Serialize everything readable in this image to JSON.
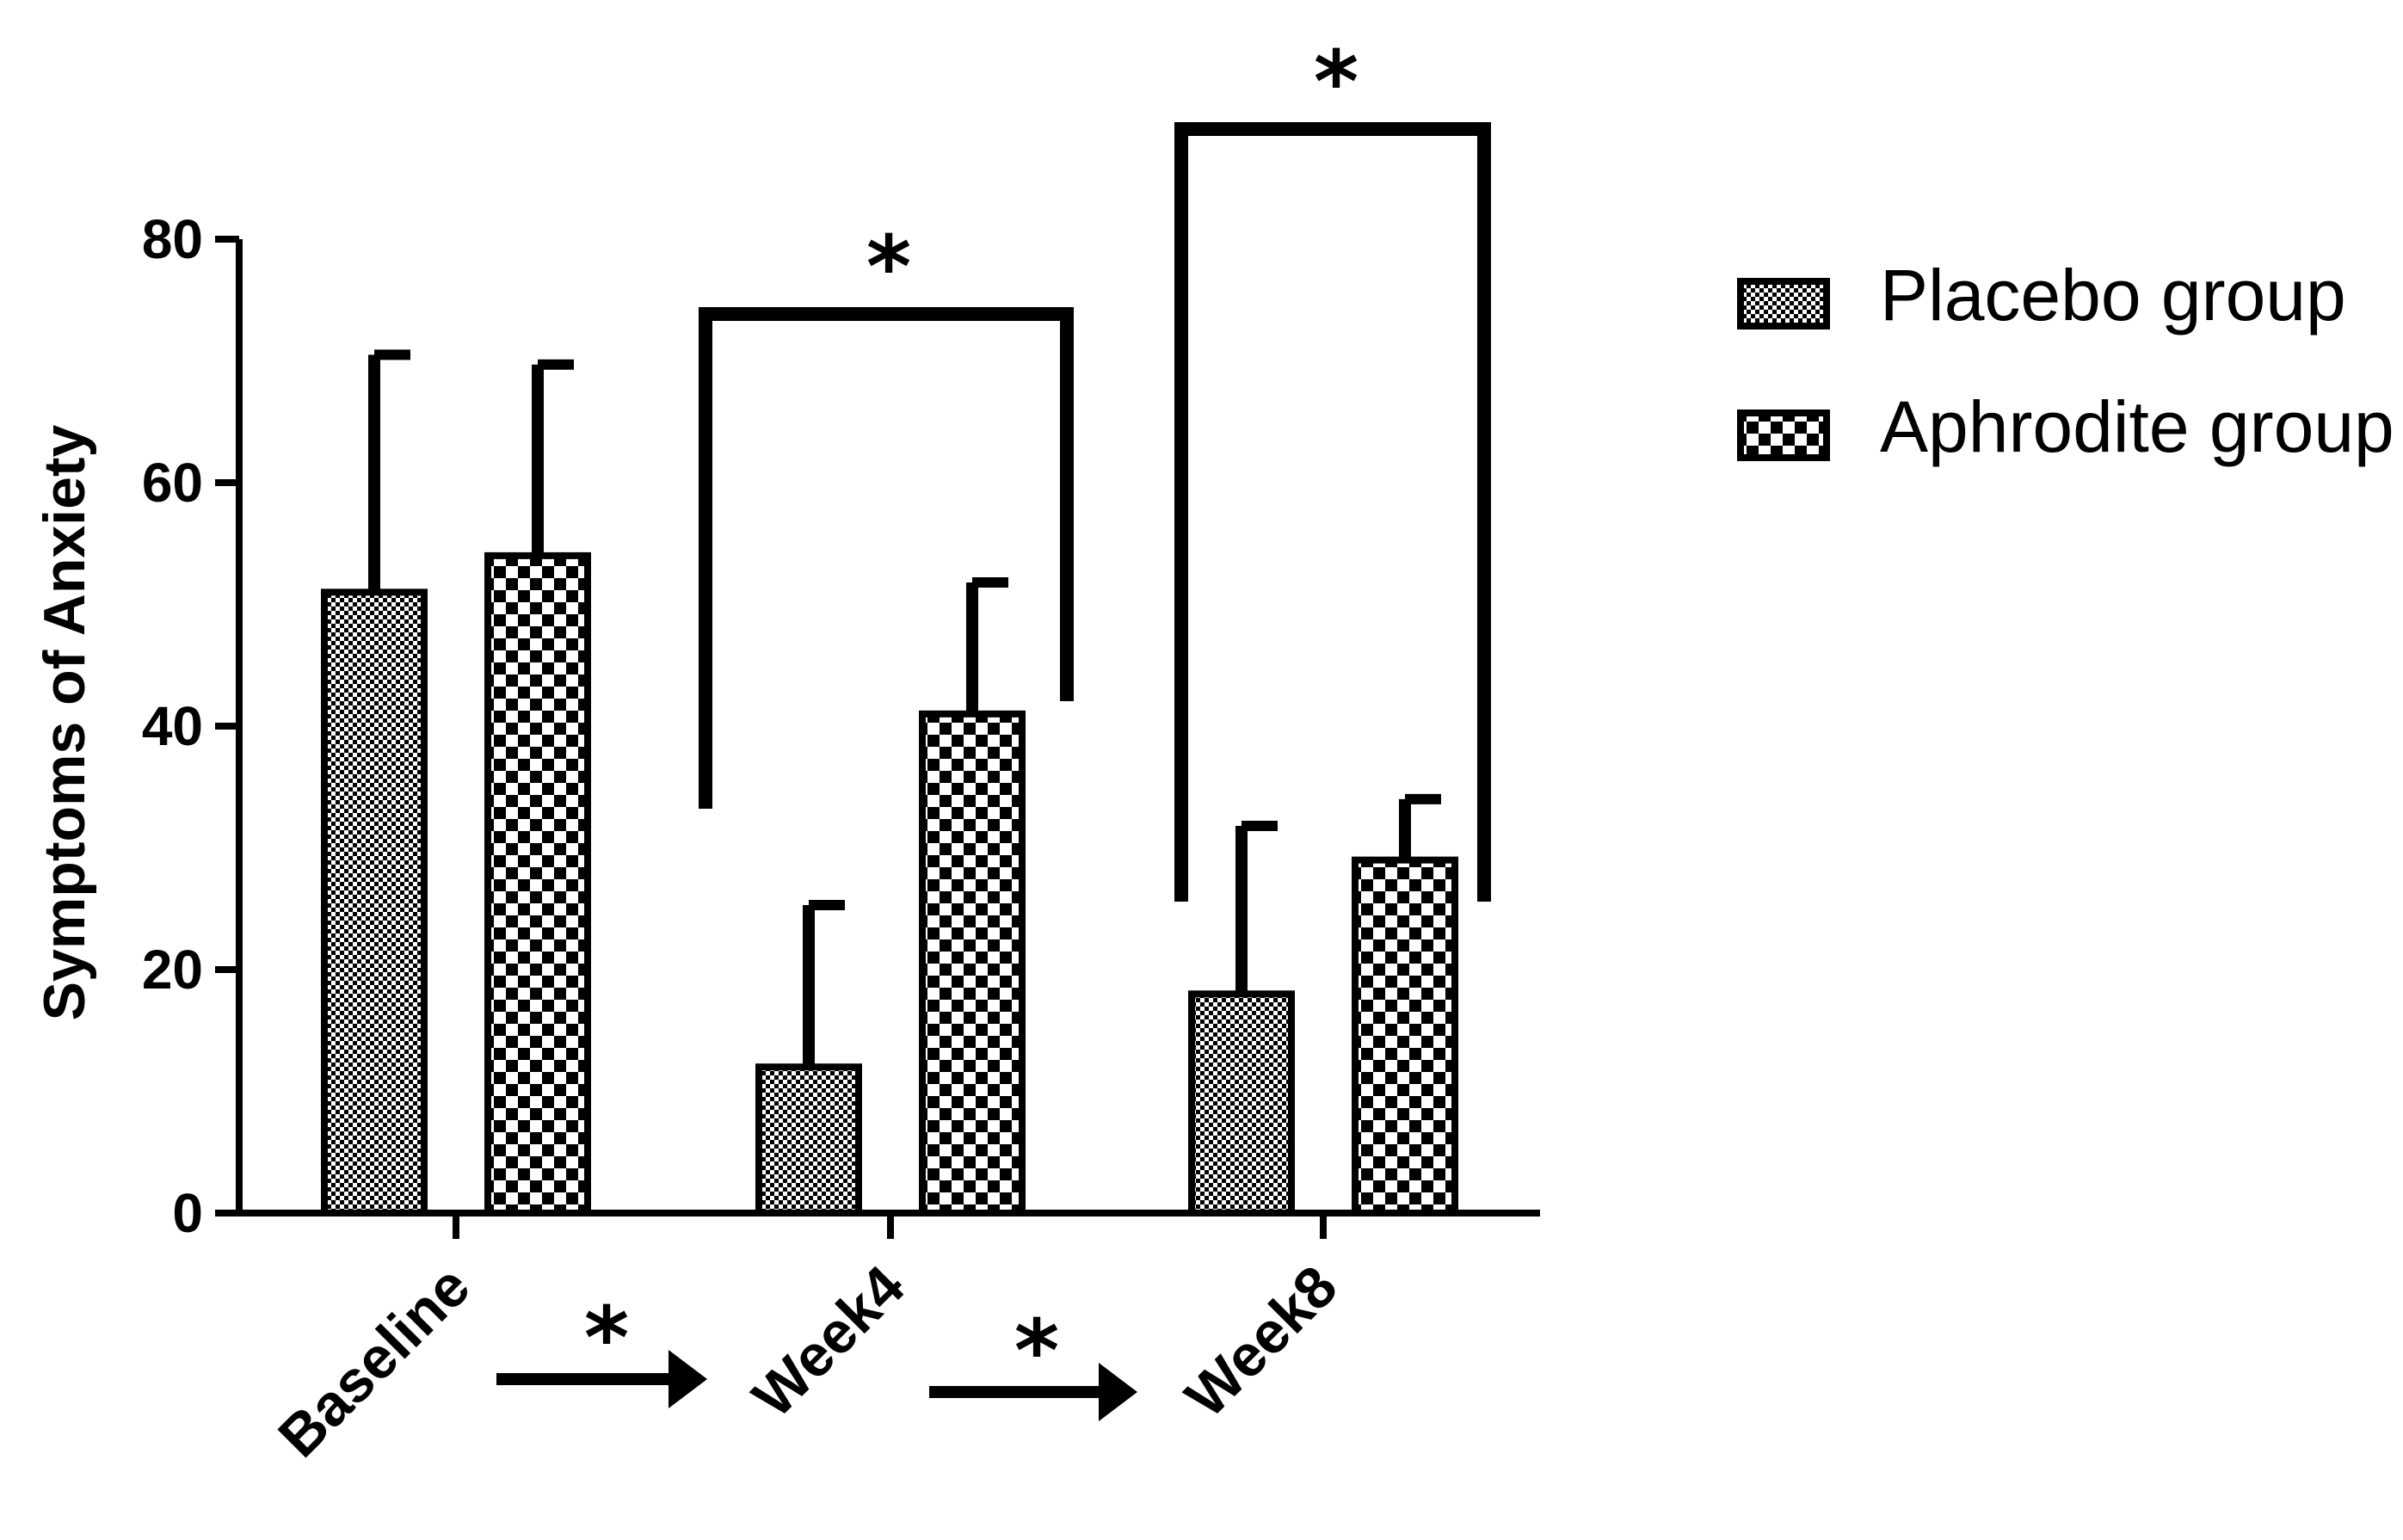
{
  "chart_data": {
    "type": "bar",
    "ylabel": "Symptoms of Anxiety",
    "ylim": [
      0,
      80
    ],
    "yticks": [
      0,
      20,
      40,
      60,
      80
    ],
    "categories": [
      "Baseline",
      "Week4",
      "Week8"
    ],
    "series": [
      {
        "name": "Placebo group",
        "values": [
          51,
          12,
          18
        ],
        "error": [
          19.5,
          13.3,
          13.8
        ],
        "pattern": "fine-check"
      },
      {
        "name": "Aphrodite group",
        "values": [
          54,
          41,
          29
        ],
        "error": [
          15.7,
          10.8,
          5
        ]
      }
    ],
    "significance": {
      "brackets": [
        {
          "category": "Week4",
          "label": "*"
        },
        {
          "category": "Week8",
          "label": "*"
        }
      ],
      "arrows": [
        {
          "from": "Baseline",
          "to": "Week4",
          "label": "*"
        },
        {
          "from": "Week4",
          "to": "Week8",
          "label": "*"
        }
      ]
    },
    "legend_position": "top-right",
    "colors": {
      "fill": "#000000",
      "background": "#ffffff"
    }
  }
}
